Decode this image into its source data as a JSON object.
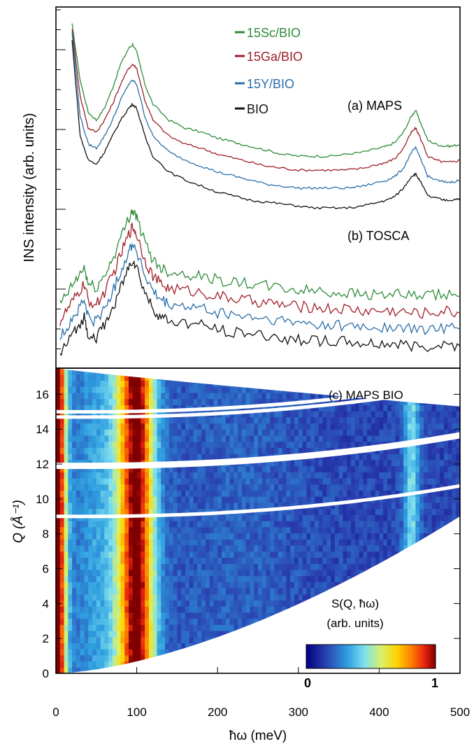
{
  "chart_data": [
    {
      "type": "line",
      "panel": "(a) MAPS",
      "ylabel": "INS intensity (arb. units)",
      "xlim": [
        0,
        500
      ],
      "legend": {
        "placement": "top-center"
      },
      "series": [
        {
          "name": "15Sc/BIO",
          "color": "#2e8b3a",
          "x": [
            20,
            30,
            40,
            50,
            60,
            70,
            80,
            90,
            95,
            100,
            110,
            120,
            140,
            160,
            180,
            200,
            220,
            240,
            260,
            280,
            300,
            320,
            340,
            360,
            380,
            400,
            410,
            420,
            430,
            440,
            445,
            450,
            460,
            470,
            480,
            490,
            500
          ],
          "y": [
            9.6,
            8.2,
            7.4,
            7.2,
            7.5,
            8.0,
            8.6,
            9.0,
            9.1,
            8.9,
            8.1,
            7.6,
            7.2,
            7.0,
            6.9,
            6.75,
            6.65,
            6.55,
            6.45,
            6.35,
            6.3,
            6.3,
            6.3,
            6.35,
            6.4,
            6.5,
            6.55,
            6.65,
            6.9,
            7.3,
            7.45,
            7.2,
            6.7,
            6.6,
            6.55,
            6.55,
            6.6
          ]
        },
        {
          "name": "15Ga/BIO",
          "color": "#9e1f28",
          "x": [
            20,
            30,
            40,
            50,
            60,
            70,
            80,
            90,
            95,
            100,
            110,
            120,
            140,
            160,
            180,
            200,
            220,
            240,
            260,
            280,
            300,
            320,
            340,
            360,
            380,
            400,
            410,
            420,
            430,
            440,
            445,
            450,
            460,
            470,
            480,
            490,
            500
          ],
          "y": [
            9.5,
            7.8,
            7.0,
            6.9,
            7.2,
            7.6,
            8.1,
            8.5,
            8.6,
            8.5,
            7.7,
            7.2,
            6.8,
            6.6,
            6.5,
            6.35,
            6.25,
            6.15,
            6.05,
            6.0,
            5.95,
            5.95,
            5.95,
            5.95,
            6.0,
            6.1,
            6.15,
            6.25,
            6.5,
            6.9,
            7.0,
            6.8,
            6.3,
            6.2,
            6.15,
            6.15,
            6.2
          ]
        },
        {
          "name": "15Y/BIO",
          "color": "#2b6ea8",
          "x": [
            20,
            30,
            40,
            50,
            60,
            70,
            80,
            90,
            95,
            100,
            110,
            120,
            140,
            160,
            180,
            200,
            220,
            240,
            260,
            280,
            300,
            320,
            340,
            360,
            380,
            400,
            410,
            420,
            430,
            440,
            445,
            450,
            460,
            470,
            480,
            490,
            500
          ],
          "y": [
            9.4,
            7.3,
            6.6,
            6.5,
            6.8,
            7.2,
            7.7,
            8.1,
            8.2,
            8.1,
            7.3,
            6.8,
            6.4,
            6.2,
            6.05,
            5.9,
            5.8,
            5.7,
            5.6,
            5.55,
            5.5,
            5.5,
            5.5,
            5.5,
            5.55,
            5.65,
            5.7,
            5.8,
            6.0,
            6.4,
            6.5,
            6.3,
            5.8,
            5.7,
            5.65,
            5.65,
            5.7
          ]
        },
        {
          "name": "BIO",
          "color": "#111111",
          "x": [
            20,
            30,
            40,
            50,
            60,
            70,
            80,
            90,
            95,
            100,
            110,
            120,
            140,
            160,
            180,
            200,
            220,
            240,
            260,
            280,
            300,
            320,
            340,
            360,
            380,
            400,
            410,
            420,
            430,
            440,
            445,
            450,
            460,
            470,
            480,
            490,
            500
          ],
          "y": [
            9.2,
            6.8,
            6.2,
            6.1,
            6.4,
            6.8,
            7.2,
            7.5,
            7.6,
            7.5,
            6.8,
            6.3,
            5.9,
            5.7,
            5.55,
            5.4,
            5.3,
            5.2,
            5.15,
            5.1,
            5.05,
            5.0,
            5.0,
            5.0,
            5.05,
            5.15,
            5.2,
            5.3,
            5.5,
            5.8,
            5.85,
            5.7,
            5.3,
            5.25,
            5.2,
            5.2,
            5.25
          ]
        }
      ]
    },
    {
      "type": "line",
      "panel": "(b) TOSCA",
      "xlim": [
        0,
        500
      ],
      "series": [
        {
          "name": "15Sc/BIO",
          "color": "#2e8b3a",
          "x": [
            5,
            15,
            25,
            35,
            40,
            50,
            60,
            70,
            80,
            90,
            95,
            100,
            110,
            120,
            130,
            140,
            160,
            180,
            200,
            220,
            240,
            260,
            280,
            300,
            320,
            340,
            360,
            380,
            400,
            420,
            440,
            460,
            480,
            500
          ],
          "y": [
            3.2,
            3.5,
            3.8,
            4.1,
            3.7,
            3.6,
            3.9,
            4.3,
            4.8,
            5.3,
            5.5,
            5.3,
            4.7,
            4.3,
            4.1,
            4.0,
            3.95,
            3.9,
            3.8,
            3.75,
            3.7,
            3.65,
            3.6,
            3.55,
            3.55,
            3.5,
            3.5,
            3.45,
            3.45,
            3.45,
            3.4,
            3.4,
            3.45,
            3.4
          ]
        },
        {
          "name": "15Ga/BIO",
          "color": "#9e1f28",
          "x": [
            5,
            15,
            25,
            35,
            40,
            50,
            60,
            70,
            80,
            90,
            95,
            100,
            110,
            120,
            130,
            140,
            160,
            180,
            200,
            220,
            240,
            260,
            280,
            300,
            320,
            340,
            360,
            380,
            400,
            420,
            440,
            460,
            480,
            500
          ],
          "y": [
            2.8,
            3.1,
            3.4,
            3.7,
            3.3,
            3.2,
            3.5,
            3.9,
            4.4,
            4.9,
            5.1,
            4.9,
            4.3,
            3.9,
            3.7,
            3.6,
            3.55,
            3.5,
            3.4,
            3.35,
            3.3,
            3.25,
            3.2,
            3.15,
            3.15,
            3.1,
            3.1,
            3.05,
            3.05,
            3.05,
            3.0,
            3.0,
            3.05,
            3.0
          ]
        },
        {
          "name": "15Y/BIO",
          "color": "#2b6ea8",
          "x": [
            5,
            15,
            25,
            35,
            40,
            50,
            60,
            70,
            80,
            90,
            95,
            100,
            110,
            120,
            130,
            140,
            160,
            180,
            200,
            220,
            240,
            260,
            280,
            300,
            320,
            340,
            360,
            380,
            400,
            420,
            440,
            460,
            480,
            500
          ],
          "y": [
            2.4,
            2.7,
            3.0,
            3.3,
            2.9,
            2.8,
            3.1,
            3.5,
            4.0,
            4.5,
            4.7,
            4.5,
            3.9,
            3.5,
            3.3,
            3.2,
            3.15,
            3.1,
            3.0,
            2.95,
            2.9,
            2.85,
            2.8,
            2.75,
            2.75,
            2.7,
            2.7,
            2.65,
            2.65,
            2.65,
            2.6,
            2.6,
            2.65,
            2.6
          ]
        },
        {
          "name": "BIO",
          "color": "#111111",
          "x": [
            5,
            15,
            25,
            35,
            40,
            50,
            60,
            70,
            80,
            90,
            95,
            100,
            110,
            120,
            130,
            140,
            160,
            180,
            200,
            220,
            240,
            260,
            280,
            300,
            320,
            340,
            360,
            380,
            400,
            420,
            440,
            460,
            480,
            500
          ],
          "y": [
            2.0,
            2.3,
            2.6,
            2.9,
            2.5,
            2.4,
            2.7,
            3.1,
            3.6,
            4.1,
            4.3,
            4.1,
            3.5,
            3.1,
            2.9,
            2.8,
            2.75,
            2.7,
            2.6,
            2.55,
            2.5,
            2.45,
            2.4,
            2.35,
            2.35,
            2.3,
            2.3,
            2.25,
            2.25,
            2.25,
            2.2,
            2.2,
            2.25,
            2.2
          ]
        }
      ]
    },
    {
      "type": "heatmap",
      "panel": "(c) MAPS BIO",
      "xlabel": "ħω (meV)",
      "ylabel": "Q (Å⁻¹)",
      "xlim": [
        0,
        500
      ],
      "ylim": [
        0,
        17.5
      ],
      "xticks": [
        0,
        100,
        200,
        300,
        400,
        500
      ],
      "yticks": [
        0,
        2,
        4,
        6,
        8,
        10,
        12,
        14,
        16
      ],
      "colorbar": {
        "label": "S(Q, ħω)",
        "sublabel": "(arb. units)",
        "min": 0,
        "max": 1,
        "min_label": "0",
        "max_label": "1",
        "colormap": "jet",
        "placement": "bottom-right"
      },
      "features": [
        {
          "energy": 0,
          "width": 12,
          "intensity": 1.0
        },
        {
          "energy": 100,
          "width": 22,
          "intensity": 0.78
        },
        {
          "energy": 440,
          "width": 10,
          "intensity": 0.28
        }
      ],
      "detector_gaps_Q": [
        9.0,
        11.9,
        14.7,
        15.0
      ],
      "accessible_region": {
        "Q_at_0meV_min": 0,
        "Q_at_500meV_min": 9.0,
        "Q_max_at_0meV": 17.5,
        "Q_max_at_500meV": 15.3
      }
    }
  ]
}
